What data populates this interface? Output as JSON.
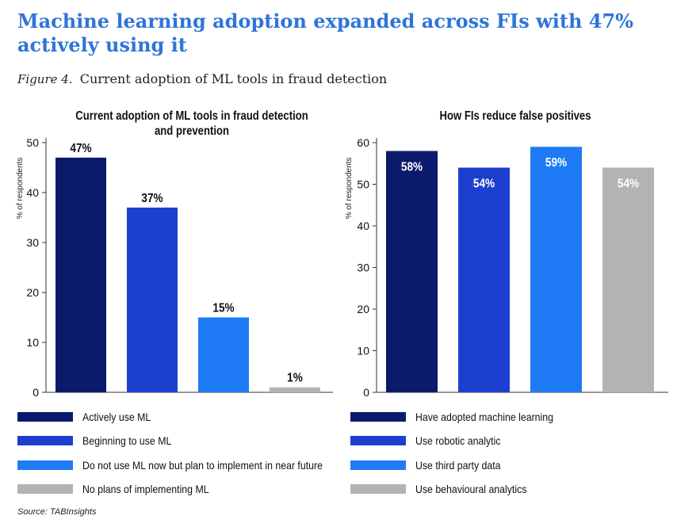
{
  "headline": "Machine learning adoption expanded across FIs with 47% actively using it",
  "figure_label": "Figure 4.",
  "figure_caption": "Current adoption of ML tools in fraud detection",
  "source": "Source: TABInsights",
  "colors": {
    "navy": "#0b1a6b",
    "royal": "#1d3fd0",
    "bright": "#1e7bf5",
    "gray": "#b3b3b3",
    "headline": "#2f74d8"
  },
  "chart_data": [
    {
      "type": "bar",
      "title": "Current adoption of ML tools in fraud detection and prevention",
      "ylabel": "% of respondents",
      "ylim": [
        0,
        50
      ],
      "yticks": [
        0,
        10,
        20,
        30,
        40,
        50
      ],
      "categories": [
        "Actively use ML",
        "Beginning to use ML",
        "Do not use ML now but plan to implement in near future",
        "No plans of implementing ML"
      ],
      "values": [
        47,
        37,
        15,
        1
      ],
      "data_labels": [
        "47%",
        "37%",
        "15%",
        "1%"
      ],
      "label_position": "above",
      "colors": [
        "#0b1a6b",
        "#1d3fd0",
        "#1e7bf5",
        "#b3b3b3"
      ],
      "legend": "bottom"
    },
    {
      "type": "bar",
      "title": "How FIs reduce false positives",
      "ylabel": "% of respondents",
      "ylim": [
        0,
        60
      ],
      "yticks": [
        0,
        10,
        20,
        30,
        40,
        50,
        60
      ],
      "categories": [
        "Have adopted machine learning",
        "Use robotic analytic",
        "Use third party data",
        "Use behavioural analytics"
      ],
      "values": [
        58,
        54,
        59,
        54
      ],
      "data_labels": [
        "58%",
        "54%",
        "59%",
        "54%"
      ],
      "label_position": "inside",
      "colors": [
        "#0b1a6b",
        "#1d3fd0",
        "#1e7bf5",
        "#b3b3b3"
      ],
      "legend": "bottom"
    }
  ]
}
